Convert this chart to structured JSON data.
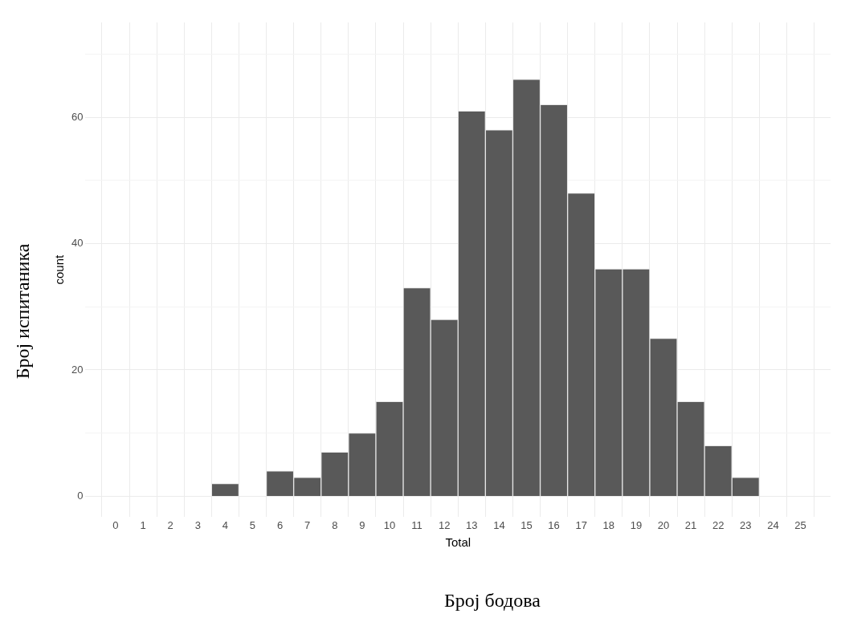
{
  "chart_data": {
    "type": "histogram",
    "xlabel": "Total",
    "ylabel": "count",
    "bins": [
      0.5,
      1.5,
      2.5,
      3.5,
      4.5,
      5.5,
      6.5,
      7.5,
      8.5,
      9.5,
      10.5,
      11.5,
      12.5,
      13.5,
      14.5,
      15.5,
      16.5,
      17.5,
      18.5,
      19.5,
      20.5,
      21.5,
      22.5,
      23.5,
      24.5
    ],
    "values": [
      0,
      0,
      0,
      2,
      0,
      4,
      3,
      7,
      10,
      15,
      33,
      28,
      61,
      58,
      66,
      62,
      48,
      36,
      36,
      25,
      15,
      8,
      3,
      0
    ],
    "color": "#595959",
    "xlim": [
      -1.1,
      26.1
    ],
    "xticks": [
      0,
      1,
      2,
      3,
      4,
      5,
      6,
      7,
      8,
      9,
      10,
      11,
      12,
      13,
      14,
      15,
      16,
      17,
      18,
      19,
      20,
      21,
      22,
      23,
      24,
      25
    ],
    "ylim": [
      -3.3,
      75
    ],
    "yticks": [
      0,
      {
        "value": 10,
        "label": null
      },
      20,
      {
        "value": 30,
        "label": null
      },
      40,
      {
        "value": 50,
        "label": null
      },
      60,
      {
        "value": 70,
        "label": null
      }
    ],
    "grid": true,
    "annotations": [
      "Број испитаника",
      "Број бодова"
    ]
  }
}
